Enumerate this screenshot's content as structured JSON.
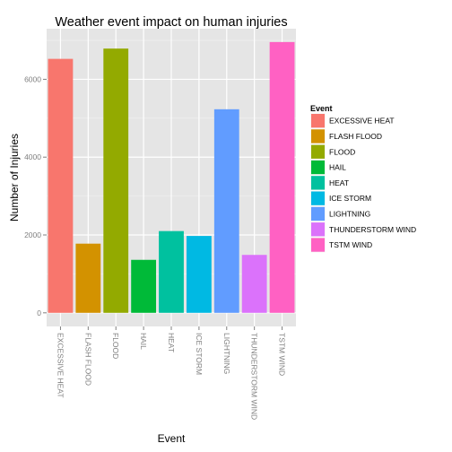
{
  "chart_data": {
    "type": "bar",
    "title": "Weather event impact on human injuries",
    "xlabel": "Event",
    "ylabel": "Number of Injuries",
    "categories": [
      "EXCESSIVE HEAT",
      "FLASH FLOOD",
      "FLOOD",
      "HAIL",
      "HEAT",
      "ICE STORM",
      "LIGHTNING",
      "THUNDERSTORM WIND",
      "TSTM WIND"
    ],
    "values": [
      6525,
      1777,
      6789,
      1361,
      2100,
      1975,
      5230,
      1488,
      6957
    ],
    "colors": [
      "#F8766D",
      "#D39200",
      "#93AA00",
      "#00BA38",
      "#00C19F",
      "#00B9E3",
      "#619CFF",
      "#DB72FB",
      "#FF61C3"
    ],
    "yticks": [
      0,
      2000,
      4000,
      6000
    ],
    "ytick_labels": [
      "0",
      "2000",
      "4000",
      "6000"
    ],
    "ylim": [
      -350,
      7300
    ],
    "grid": true,
    "legend_title": "Event",
    "legend_position": "right"
  }
}
